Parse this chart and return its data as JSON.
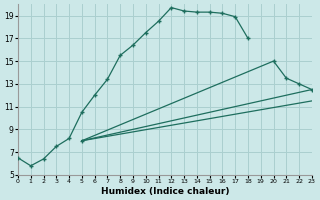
{
  "xlabel": "Humidex (Indice chaleur)",
  "bg_color": "#cce8e8",
  "grid_color": "#aacfcf",
  "line_color": "#1e6e5e",
  "xlim": [
    0,
    23
  ],
  "ylim": [
    5,
    20
  ],
  "yticks": [
    5,
    7,
    9,
    11,
    13,
    15,
    17,
    19
  ],
  "xticks": [
    0,
    1,
    2,
    3,
    4,
    5,
    6,
    7,
    8,
    9,
    10,
    11,
    12,
    13,
    14,
    15,
    16,
    17,
    18,
    19,
    20,
    21,
    22,
    23
  ],
  "curves": [
    {
      "x": [
        0,
        1,
        2,
        3,
        4,
        5,
        6,
        7,
        8,
        9,
        10,
        11,
        12,
        13,
        14,
        15,
        16,
        17,
        18
      ],
      "y": [
        6.5,
        5.8,
        6.4,
        7.5,
        8.2,
        10.5,
        12.0,
        13.4,
        15.5,
        16.4,
        17.5,
        18.5,
        19.7,
        19.4,
        19.3,
        19.3,
        19.2,
        18.9,
        17.0
      ],
      "markers": true
    },
    {
      "x": [
        5,
        20,
        21,
        22,
        23
      ],
      "y": [
        8.0,
        15.0,
        13.5,
        13.0,
        12.5
      ],
      "markers": true
    },
    {
      "x": [
        5,
        23
      ],
      "y": [
        8.0,
        12.5
      ],
      "markers": false
    },
    {
      "x": [
        5,
        23
      ],
      "y": [
        8.0,
        11.5
      ],
      "markers": false
    }
  ]
}
